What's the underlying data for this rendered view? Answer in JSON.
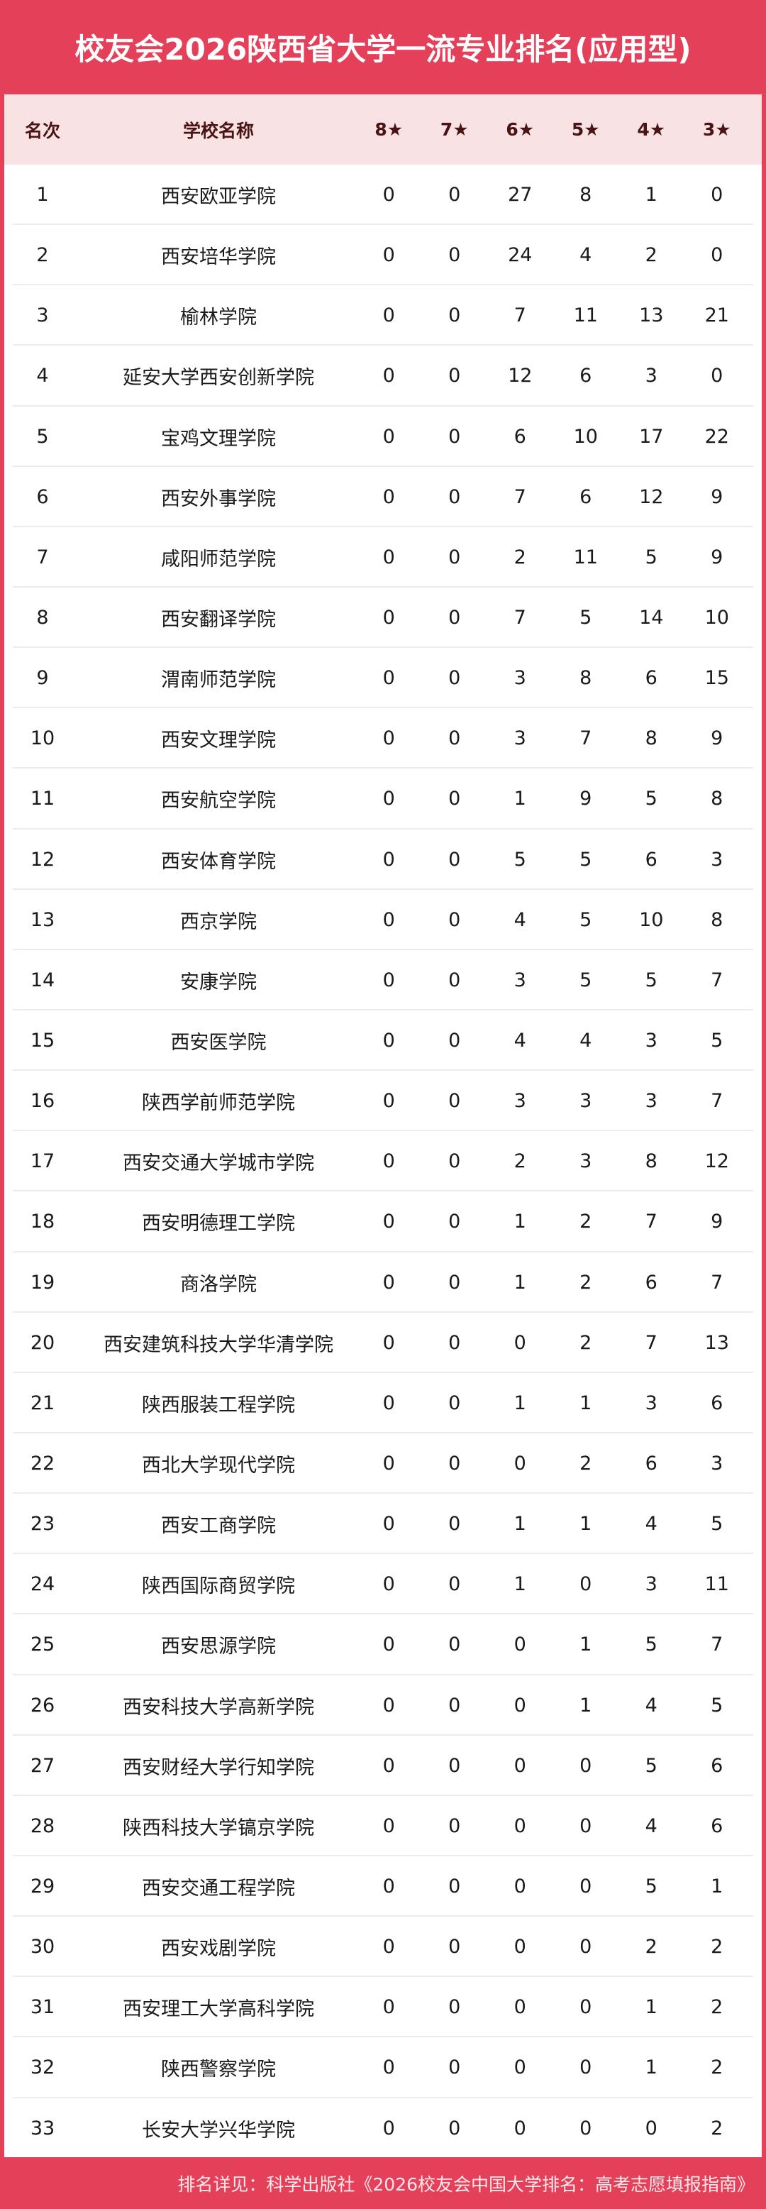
{
  "title": "校友会2026陕西省大学一流专业排名(应用型)",
  "columns": {
    "rank": "名次",
    "name": "学校名称",
    "s8": "8★",
    "s7": "7★",
    "s6": "6★",
    "s5": "5★",
    "s4": "4★",
    "s3": "3★"
  },
  "rows": [
    [
      "1",
      "西安欧亚学院",
      "0",
      "0",
      "27",
      "8",
      "1",
      "0"
    ],
    [
      "2",
      "西安培华学院",
      "0",
      "0",
      "24",
      "4",
      "2",
      "0"
    ],
    [
      "3",
      "榆林学院",
      "0",
      "0",
      "7",
      "11",
      "13",
      "21"
    ],
    [
      "4",
      "延安大学西安创新学院",
      "0",
      "0",
      "12",
      "6",
      "3",
      "0"
    ],
    [
      "5",
      "宝鸡文理学院",
      "0",
      "0",
      "6",
      "10",
      "17",
      "22"
    ],
    [
      "6",
      "西安外事学院",
      "0",
      "0",
      "7",
      "6",
      "12",
      "9"
    ],
    [
      "7",
      "咸阳师范学院",
      "0",
      "0",
      "2",
      "11",
      "5",
      "9"
    ],
    [
      "8",
      "西安翻译学院",
      "0",
      "0",
      "7",
      "5",
      "14",
      "10"
    ],
    [
      "9",
      "渭南师范学院",
      "0",
      "0",
      "3",
      "8",
      "6",
      "15"
    ],
    [
      "10",
      "西安文理学院",
      "0",
      "0",
      "3",
      "7",
      "8",
      "9"
    ],
    [
      "11",
      "西安航空学院",
      "0",
      "0",
      "1",
      "9",
      "5",
      "8"
    ],
    [
      "12",
      "西安体育学院",
      "0",
      "0",
      "5",
      "5",
      "6",
      "3"
    ],
    [
      "13",
      "西京学院",
      "0",
      "0",
      "4",
      "5",
      "10",
      "8"
    ],
    [
      "14",
      "安康学院",
      "0",
      "0",
      "3",
      "5",
      "5",
      "7"
    ],
    [
      "15",
      "西安医学院",
      "0",
      "0",
      "4",
      "4",
      "3",
      "5"
    ],
    [
      "16",
      "陕西学前师范学院",
      "0",
      "0",
      "3",
      "3",
      "3",
      "7"
    ],
    [
      "17",
      "西安交通大学城市学院",
      "0",
      "0",
      "2",
      "3",
      "8",
      "12"
    ],
    [
      "18",
      "西安明德理工学院",
      "0",
      "0",
      "1",
      "2",
      "7",
      "9"
    ],
    [
      "19",
      "商洛学院",
      "0",
      "0",
      "1",
      "2",
      "6",
      "7"
    ],
    [
      "20",
      "西安建筑科技大学华清学院",
      "0",
      "0",
      "0",
      "2",
      "7",
      "13"
    ],
    [
      "21",
      "陕西服装工程学院",
      "0",
      "0",
      "1",
      "1",
      "3",
      "6"
    ],
    [
      "22",
      "西北大学现代学院",
      "0",
      "0",
      "0",
      "2",
      "6",
      "3"
    ],
    [
      "23",
      "西安工商学院",
      "0",
      "0",
      "1",
      "1",
      "4",
      "5"
    ],
    [
      "24",
      "陕西国际商贸学院",
      "0",
      "0",
      "1",
      "0",
      "3",
      "11"
    ],
    [
      "25",
      "西安思源学院",
      "0",
      "0",
      "0",
      "1",
      "5",
      "7"
    ],
    [
      "26",
      "西安科技大学高新学院",
      "0",
      "0",
      "0",
      "1",
      "4",
      "5"
    ],
    [
      "27",
      "西安财经大学行知学院",
      "0",
      "0",
      "0",
      "0",
      "5",
      "6"
    ],
    [
      "28",
      "陕西科技大学镐京学院",
      "0",
      "0",
      "0",
      "0",
      "4",
      "6"
    ],
    [
      "29",
      "西安交通工程学院",
      "0",
      "0",
      "0",
      "0",
      "5",
      "1"
    ],
    [
      "30",
      "西安戏剧学院",
      "0",
      "0",
      "0",
      "0",
      "2",
      "2"
    ],
    [
      "31",
      "西安理工大学高科学院",
      "0",
      "0",
      "0",
      "0",
      "1",
      "2"
    ],
    [
      "32",
      "陕西警察学院",
      "0",
      "0",
      "0",
      "0",
      "1",
      "2"
    ],
    [
      "33",
      "长安大学兴华学院",
      "0",
      "0",
      "0",
      "0",
      "0",
      "2"
    ]
  ],
  "footer": "排名详见：科学出版社《2026校友会中国大学排名：高考志愿填报指南》",
  "colors": {
    "brand": "#e5405a",
    "header_bg": "#f8e2e4",
    "header_text": "#4a1414"
  }
}
